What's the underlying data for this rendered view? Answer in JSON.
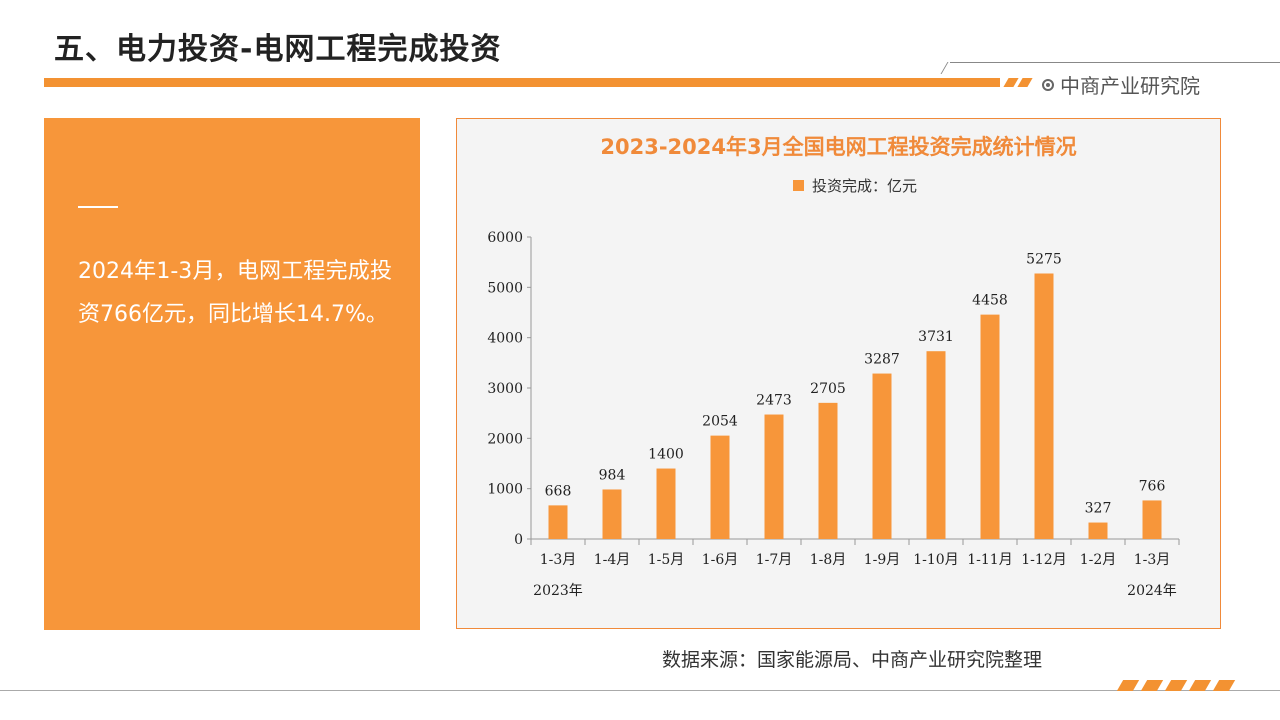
{
  "header": {
    "title": "五、电力投资-电网工程完成投资",
    "brand": "中商产业研究院",
    "accent_color": "#f39232"
  },
  "summary": {
    "text": "2024年1-3月，电网工程完成投资766亿元，同比增长14.7%。"
  },
  "chart_data": {
    "type": "bar",
    "title": "2023-2024年3月全国电网工程投资完成统计情况",
    "legend": "投资完成：亿元",
    "legend_position": "top-center",
    "categories": [
      "1-3月",
      "1-4月",
      "1-5月",
      "1-6月",
      "1-7月",
      "1-8月",
      "1-9月",
      "1-10月",
      "1-11月",
      "1-12月",
      "1-2月",
      "1-3月"
    ],
    "group_labels": [
      {
        "label": "2023年",
        "index": 0
      },
      {
        "label": "2024年",
        "index": 11
      }
    ],
    "series": [
      {
        "name": "投资完成：亿元",
        "values": [
          668,
          984,
          1400,
          2054,
          2473,
          2705,
          3287,
          3731,
          4458,
          5275,
          327,
          766
        ],
        "color": "#f7963a"
      }
    ],
    "y_ticks": [
      0,
      1000,
      2000,
      3000,
      4000,
      5000,
      6000
    ],
    "ylim": [
      0,
      6000
    ],
    "grid": false
  },
  "footer": {
    "source": "数据来源：国家能源局、中商产业研究院整理"
  }
}
